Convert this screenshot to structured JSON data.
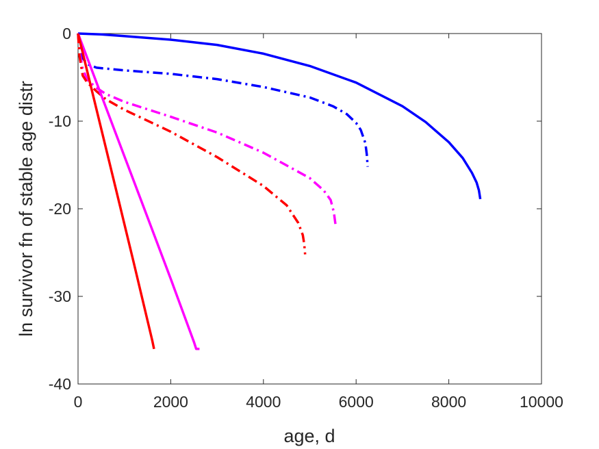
{
  "chart_data": {
    "type": "line",
    "title": "",
    "xlabel": "age, d",
    "ylabel": "ln survivor fn of stable age distr",
    "xlim": [
      0,
      10000
    ],
    "ylim": [
      -40,
      0
    ],
    "xticks": [
      0,
      2000,
      4000,
      6000,
      8000,
      10000
    ],
    "yticks": [
      0,
      -10,
      -20,
      -30,
      -40
    ],
    "xtick_labels": [
      "0",
      "2000",
      "4000",
      "6000",
      "8000",
      "10000"
    ],
    "ytick_labels": [
      "0",
      "-10",
      "-20",
      "-30",
      "-40"
    ],
    "grid": false,
    "legend": "none",
    "series": [
      {
        "color": "#0000ff",
        "style": "solid",
        "x": [
          0,
          500,
          1000,
          2000,
          3000,
          4000,
          5000,
          6000,
          7000,
          7500,
          8000,
          8300,
          8500,
          8600,
          8650,
          8680
        ],
        "y": [
          0,
          -0.1,
          -0.3,
          -0.7,
          -1.3,
          -2.3,
          -3.7,
          -5.6,
          -8.3,
          -10.1,
          -12.4,
          -14.2,
          -15.9,
          -17.0,
          -17.9,
          -18.9
        ]
      },
      {
        "color": "#0000ff",
        "style": "dashdot",
        "x": [
          0,
          30,
          100,
          200,
          400,
          600,
          1000,
          2000,
          3000,
          4000,
          5000,
          5500,
          5800,
          6000,
          6100,
          6200,
          6230,
          6250
        ],
        "y": [
          0,
          -1.5,
          -2.8,
          -3.5,
          -3.9,
          -4.0,
          -4.2,
          -4.6,
          -5.2,
          -6.1,
          -7.3,
          -8.3,
          -9.2,
          -10.2,
          -11.0,
          -12.5,
          -13.8,
          -15.2
        ]
      },
      {
        "color": "#ff00ff",
        "style": "dashdot",
        "x": [
          0,
          30,
          100,
          200,
          400,
          600,
          1000,
          2000,
          3000,
          4000,
          5000,
          5300,
          5450,
          5520,
          5560
        ],
        "y": [
          0,
          -2.0,
          -4.0,
          -5.3,
          -6.2,
          -6.9,
          -7.8,
          -9.5,
          -11.3,
          -13.6,
          -16.5,
          -17.9,
          -19.0,
          -20.4,
          -22.0
        ]
      },
      {
        "color": "#ff0000",
        "style": "dashdot",
        "x": [
          0,
          30,
          100,
          200,
          400,
          600,
          1000,
          2000,
          3000,
          4000,
          4500,
          4750,
          4850,
          4880,
          4900
        ],
        "y": [
          0,
          -2.5,
          -4.8,
          -5.6,
          -6.6,
          -7.5,
          -8.7,
          -11.2,
          -14.1,
          -17.4,
          -19.6,
          -21.6,
          -23.0,
          -24.0,
          -25.2
        ]
      },
      {
        "color": "#ff00ff",
        "style": "solid",
        "x": [
          0,
          500,
          1000,
          1500,
          2000,
          2500,
          2550,
          2620
        ],
        "y": [
          0,
          -7.0,
          -14.0,
          -21.0,
          -28.0,
          -35.2,
          -36.0,
          -36.0
        ]
      },
      {
        "color": "#ff0000",
        "style": "solid",
        "x": [
          0,
          400,
          800,
          1200,
          1600,
          1640
        ],
        "y": [
          0,
          -8.7,
          -17.4,
          -26.1,
          -35.0,
          -36.0
        ]
      }
    ]
  }
}
